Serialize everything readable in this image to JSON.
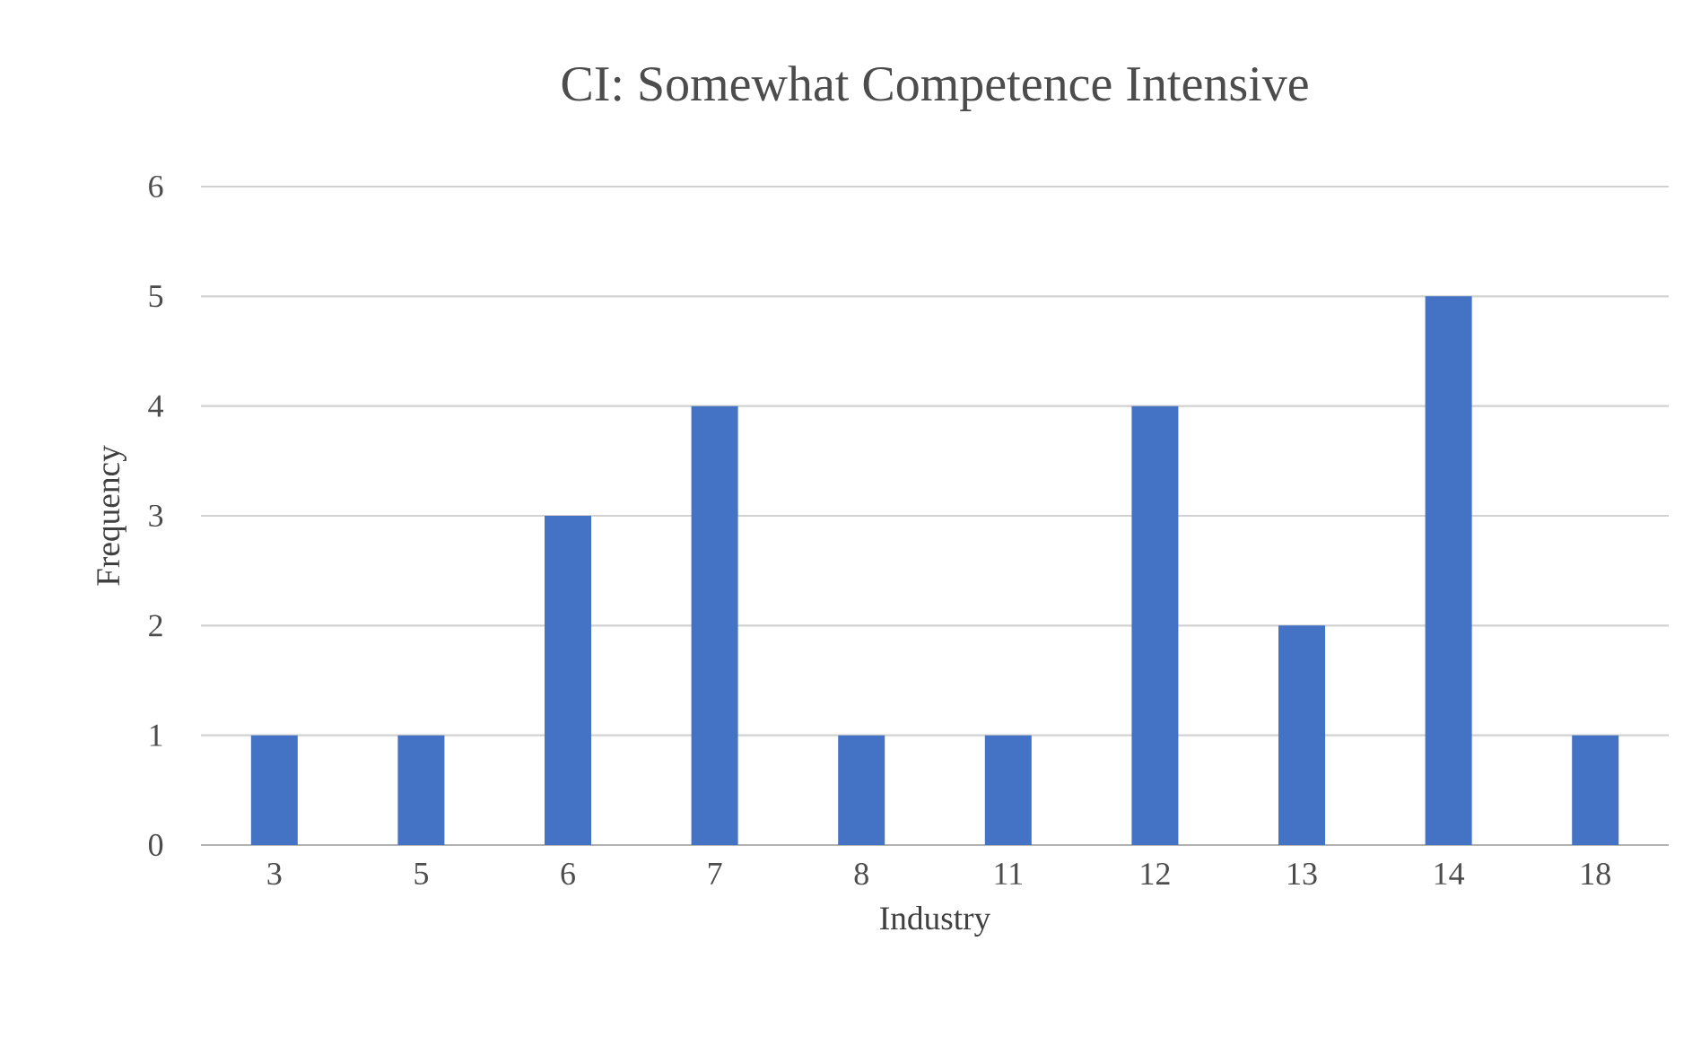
{
  "chart_data": {
    "type": "bar",
    "title": "CI: Somewhat Competence Intensive",
    "xlabel": "Industry",
    "ylabel": "Frequency",
    "categories": [
      "3",
      "5",
      "6",
      "7",
      "8",
      "11",
      "12",
      "13",
      "14",
      "18"
    ],
    "values": [
      1,
      1,
      3,
      4,
      1,
      1,
      4,
      2,
      5,
      1
    ],
    "color": "#4472c4",
    "ylim": [
      0,
      6
    ],
    "yticks": [
      0,
      1,
      2,
      3,
      4,
      5,
      6
    ],
    "grid": "y"
  }
}
